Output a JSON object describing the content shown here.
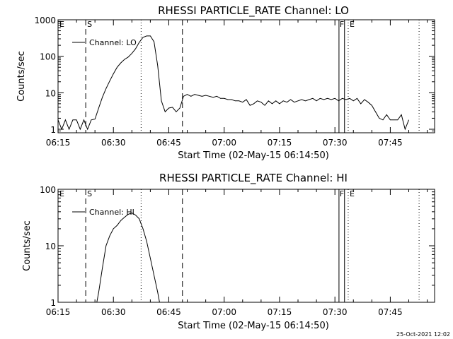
{
  "chart_data": [
    {
      "type": "line",
      "title": "RHESSI PARTICLE_RATE Channel: LO",
      "xlabel": "Start Time (02-May-15 06:14:50)",
      "ylabel": "Counts/sec",
      "x_tick_labels": [
        "06:15",
        "06:30",
        "06:45",
        "07:00",
        "07:15",
        "07:30",
        "07:45"
      ],
      "y_tick_labels": [
        "1",
        "10",
        "100",
        "1000"
      ],
      "x_range_min": [
        375,
        477
      ],
      "ylim": [
        0.8,
        1000
      ],
      "y_scale": "log",
      "legend": "top-left",
      "series": [
        {
          "name": "Channel: LO",
          "x": [
            375,
            376,
            377,
            378,
            379,
            380,
            381,
            382,
            383,
            384,
            385,
            386,
            387,
            388,
            389,
            390,
            391,
            392,
            393,
            394,
            395,
            396,
            397,
            398,
            399,
            400,
            401,
            402,
            403,
            404,
            405,
            406,
            407,
            408,
            409,
            410,
            411,
            412,
            413,
            414,
            415,
            416,
            417,
            418,
            419,
            420,
            421,
            422,
            423,
            424,
            425,
            426,
            427,
            428,
            429,
            430,
            431,
            432,
            433,
            434,
            435,
            436,
            437,
            438,
            439,
            440,
            441,
            442,
            443,
            444,
            445,
            446,
            447,
            448,
            449,
            450,
            451,
            452,
            453,
            454,
            455,
            456,
            457,
            458,
            459,
            460,
            461,
            462,
            463,
            464,
            465,
            466,
            467,
            468,
            469,
            470
          ],
          "values": [
            1.8,
            1.0,
            1.8,
            1.0,
            1.8,
            1.8,
            1.0,
            1.8,
            1.0,
            1.8,
            1.9,
            3.8,
            7.5,
            13,
            21,
            33,
            50,
            66,
            82,
            95,
            120,
            160,
            240,
            330,
            360,
            360,
            250,
            55,
            6,
            3,
            3.8,
            4,
            3,
            3.8,
            8,
            9,
            8,
            9,
            8.5,
            8,
            8.5,
            8,
            7.5,
            8,
            7,
            7,
            6.5,
            6.5,
            6,
            6,
            5.5,
            6.5,
            4.5,
            5,
            6,
            5.5,
            4.5,
            6,
            5,
            6,
            5,
            6,
            5.5,
            6.5,
            5.5,
            6,
            6.5,
            6,
            6.5,
            7,
            6,
            7,
            6.5,
            7,
            6.5,
            7,
            6,
            7,
            6.5,
            7,
            6,
            7,
            5,
            6.5,
            5.5,
            4.5,
            3,
            2,
            1.8,
            2.5,
            1.8,
            1.8,
            1.8,
            2.5,
            1.0,
            1.8
          ]
        }
      ]
    },
    {
      "type": "line",
      "title": "RHESSI PARTICLE_RATE Channel: HI",
      "xlabel": "Start Time (02-May-15 06:14:50)",
      "ylabel": "Counts/sec",
      "x_tick_labels": [
        "06:15",
        "06:30",
        "06:45",
        "07:00",
        "07:15",
        "07:30",
        "07:45"
      ],
      "y_tick_labels": [
        "1",
        "10",
        "100"
      ],
      "x_range_min": [
        375,
        477
      ],
      "ylim": [
        1,
        100
      ],
      "y_scale": "log",
      "legend": "top-left",
      "series": [
        {
          "name": "Channel: HI",
          "x": [
            385.5,
            386,
            387,
            388,
            389,
            390,
            391,
            392,
            393,
            394,
            395,
            396,
            397,
            398,
            399,
            400,
            401,
            402,
            402.5
          ],
          "values": [
            1.0,
            1.5,
            4,
            10,
            15,
            20,
            23,
            28,
            32,
            36,
            38,
            35,
            30,
            20,
            12,
            6,
            3,
            1.5,
            1.0
          ]
        }
      ]
    }
  ],
  "markers": {
    "e_label": "E",
    "s_label": "S",
    "f_label": "F"
  },
  "timestamp": "25-Oct-2021 12:02"
}
